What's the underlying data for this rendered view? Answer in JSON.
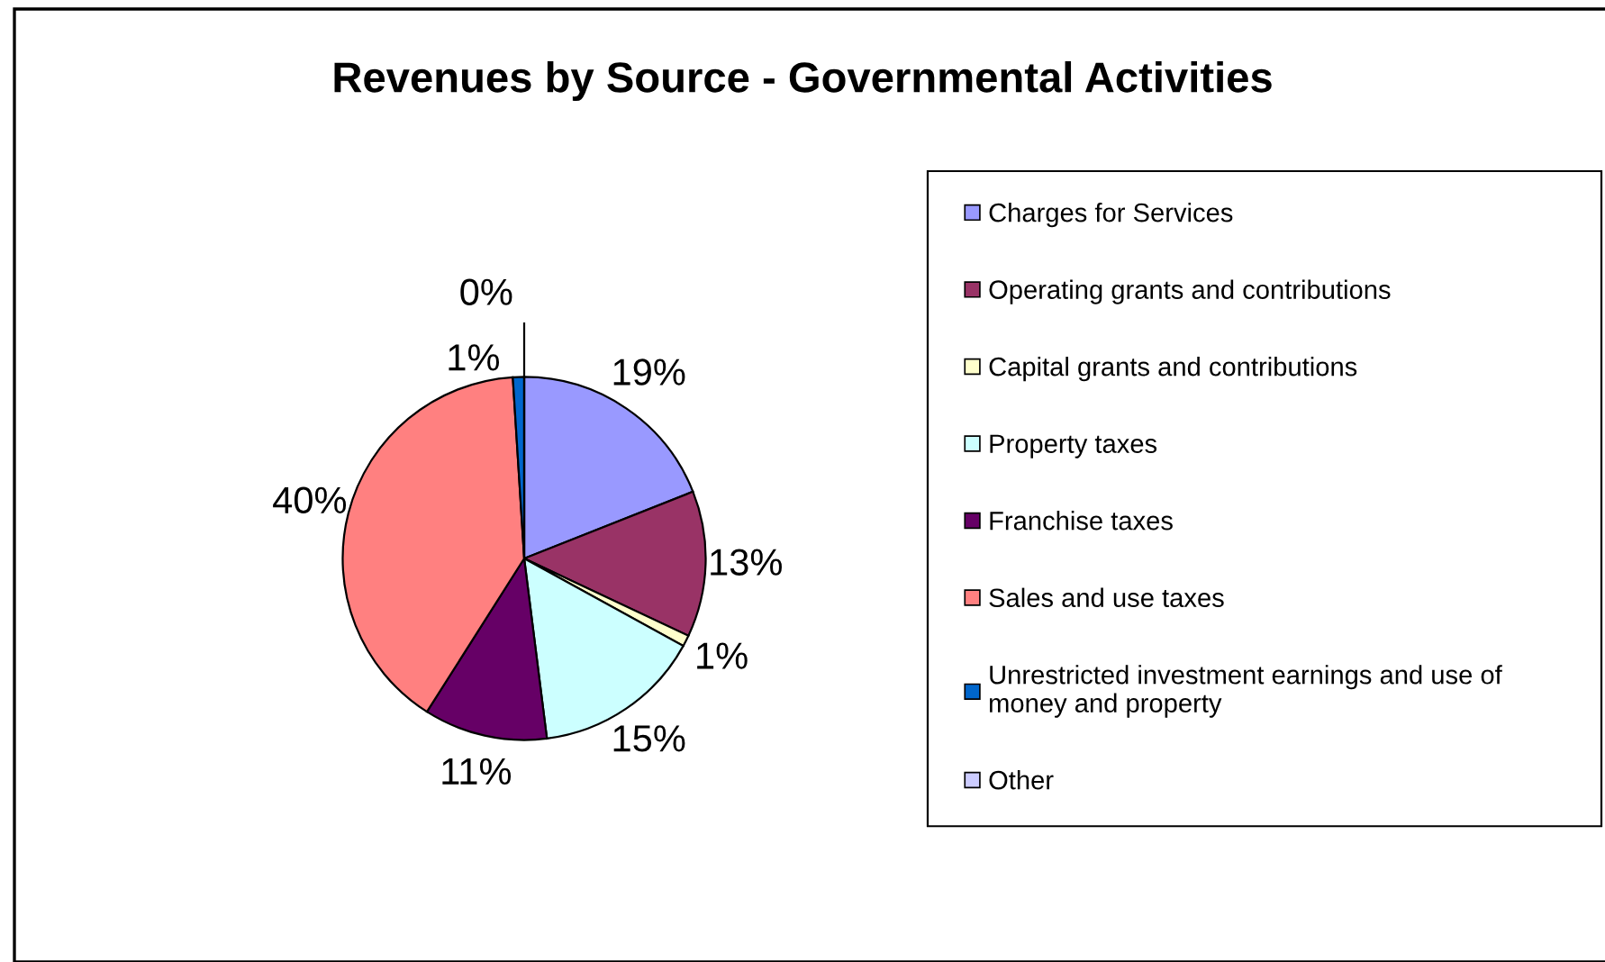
{
  "chart_data": {
    "type": "pie",
    "title": "Revenues by Source - Governmental Activities",
    "categories": [
      "Charges for Services",
      "Operating grants and contributions",
      "Capital grants and contributions",
      "Property taxes",
      "Franchise taxes",
      "Sales and use taxes",
      "Unrestricted investment earnings and use of money and property",
      "Other"
    ],
    "values": [
      19,
      13,
      1,
      15,
      11,
      40,
      1,
      0
    ],
    "colors": [
      "#9999ff",
      "#993366",
      "#ffffcc",
      "#ccffff",
      "#660066",
      "#ff8080",
      "#0066cc",
      "#ccccff"
    ],
    "value_labels": [
      "19%",
      "13%",
      "1%",
      "15%",
      "11%",
      "40%",
      "1%",
      "0%"
    ],
    "legend": "right"
  }
}
